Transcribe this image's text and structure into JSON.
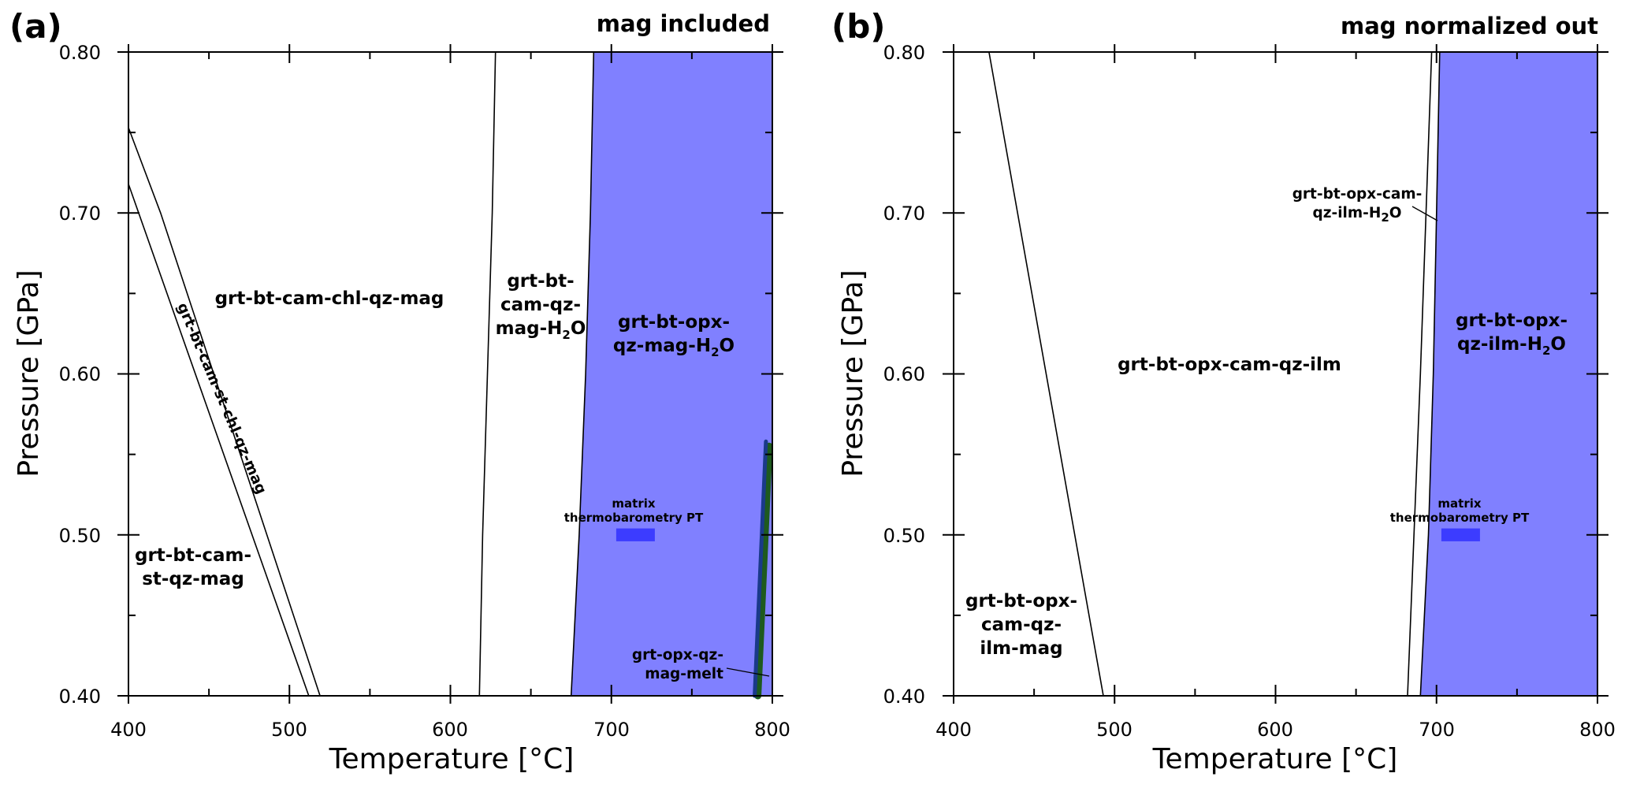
{
  "chart_data": [
    {
      "type": "phase-diagram",
      "panel_label": "(a)",
      "title": "mag included",
      "xlabel": "Temperature [°C]",
      "ylabel": "Pressure [GPa]",
      "xlim": [
        400,
        800
      ],
      "ylim": [
        0.4,
        0.8
      ],
      "x_ticks": [
        400,
        500,
        600,
        700,
        800
      ],
      "y_ticks": [
        "0.40",
        "0.50",
        "0.60",
        "0.70",
        "0.80"
      ],
      "boundaries": [
        {
          "name": "boundary-1",
          "points": [
            [
              400,
              0.718
            ],
            [
              512,
              0.4
            ]
          ]
        },
        {
          "name": "boundary-2",
          "points": [
            [
              400,
              0.753
            ],
            [
              420,
              0.7
            ],
            [
              519,
              0.4
            ]
          ]
        },
        {
          "name": "boundary-3",
          "points": [
            [
              618,
              0.4
            ],
            [
              620,
              0.5
            ],
            [
              623,
              0.6
            ],
            [
              626,
              0.7
            ],
            [
              628,
              0.8
            ]
          ]
        },
        {
          "name": "boundary-4",
          "points": [
            [
              675,
              0.4
            ],
            [
              680,
              0.5
            ],
            [
              684,
              0.6
            ],
            [
              687,
              0.7
            ],
            [
              689,
              0.8
            ]
          ]
        }
      ],
      "shaded_field": {
        "color": "#8080ff",
        "points": [
          [
            675,
            0.4
          ],
          [
            680,
            0.5
          ],
          [
            684,
            0.6
          ],
          [
            687,
            0.7
          ],
          [
            689,
            0.8
          ],
          [
            800,
            0.8
          ],
          [
            800,
            0.4
          ]
        ]
      },
      "path": {
        "colors": [
          "#1e5a1e",
          "#1a3a8a"
        ],
        "points": [
          [
            790,
            0.4
          ],
          [
            797,
            0.558
          ]
        ]
      },
      "marker": {
        "color": "#3c3cff",
        "x_range": [
          703,
          727
        ],
        "p_range": [
          0.496,
          0.504
        ],
        "label_lines": [
          "matrix",
          "thermobarometry PT"
        ]
      },
      "fields": [
        {
          "lines": [
            "grt-bt-cam-chl-qz-mag"
          ]
        },
        {
          "lines": [
            "grt-bt-cam-st-chl-qz-mag"
          ]
        },
        {
          "lines": [
            "grt-bt-cam-",
            "st-qz-mag"
          ]
        },
        {
          "lines": [
            "grt-bt-",
            "cam-qz-",
            "mag-H"
          ],
          "subscript": "2",
          "suffix": "O"
        },
        {
          "lines": [
            "grt-bt-opx-",
            "qz-mag-H"
          ],
          "subscript": "2",
          "suffix": "O"
        },
        {
          "lines": [
            "grt-opx-qz-",
            "mag-melt"
          ]
        }
      ]
    },
    {
      "type": "phase-diagram",
      "panel_label": "(b)",
      "title": "mag normalized out",
      "xlabel": "Temperature [°C]",
      "ylabel": "Pressure [GPa]",
      "xlim": [
        400,
        800
      ],
      "ylim": [
        0.4,
        0.8
      ],
      "x_ticks": [
        400,
        500,
        600,
        700,
        800
      ],
      "y_ticks": [
        "0.40",
        "0.50",
        "0.60",
        "0.70",
        "0.80"
      ],
      "boundaries": [
        {
          "name": "boundary-1",
          "points": [
            [
              422,
              0.8
            ],
            [
              493,
              0.4
            ]
          ]
        },
        {
          "name": "boundary-2",
          "points": [
            [
              682,
              0.4
            ],
            [
              690,
              0.6
            ],
            [
              697,
              0.8
            ]
          ]
        },
        {
          "name": "boundary-3",
          "points": [
            [
              690,
              0.4
            ],
            [
              695,
              0.5
            ],
            [
              698,
              0.6
            ],
            [
              700,
              0.7
            ],
            [
              702,
              0.8
            ]
          ]
        }
      ],
      "shaded_field": {
        "color": "#8080ff",
        "points": [
          [
            690,
            0.4
          ],
          [
            695,
            0.5
          ],
          [
            698,
            0.6
          ],
          [
            700,
            0.7
          ],
          [
            702,
            0.8
          ],
          [
            800,
            0.8
          ],
          [
            800,
            0.4
          ]
        ]
      },
      "marker": {
        "color": "#3c3cff",
        "x_range": [
          703,
          727
        ],
        "p_range": [
          0.496,
          0.504
        ],
        "label_lines": [
          "matrix",
          "thermobarometry PT"
        ]
      },
      "fields": [
        {
          "lines": [
            "grt-bt-opx-cam-",
            "qz-ilm-H"
          ],
          "subscript": "2",
          "suffix": "O"
        },
        {
          "lines": [
            "grt-bt-opx-cam-qz-ilm"
          ]
        },
        {
          "lines": [
            "grt-bt-opx-",
            "cam-qz-",
            "ilm-mag"
          ]
        },
        {
          "lines": [
            "grt-bt-opx-",
            "qz-ilm-H"
          ],
          "subscript": "2",
          "suffix": "O"
        }
      ]
    }
  ]
}
